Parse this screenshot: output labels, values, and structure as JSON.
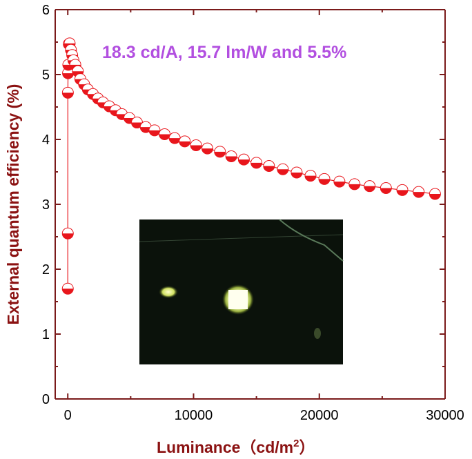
{
  "chart_data": {
    "type": "scatter",
    "title": "",
    "xlabel": "Luminance（cd/m",
    "xlabel_sup": "2",
    "xlabel_close": "）",
    "ylabel": "External quantum efficiency (%)",
    "annotation": "18.3 cd/A, 15.7 lm/W and 5.5%",
    "xlim": [
      -1000,
      30000
    ],
    "ylim": [
      0,
      6
    ],
    "xticks": [
      0,
      10000,
      20000,
      30000
    ],
    "xtick_labels": [
      "0",
      "10000",
      "20000",
      "30000"
    ],
    "yticks": [
      0,
      1,
      2,
      3,
      4,
      5,
      6
    ],
    "ytick_labels": [
      "0",
      "1",
      "2",
      "3",
      "4",
      "5",
      "6"
    ],
    "grid": false,
    "marker_color": "#e8161c",
    "line_color": "#e8161c",
    "series": [
      {
        "x": [
          1,
          3,
          8,
          20,
          40,
          80,
          150,
          250,
          350,
          450,
          600,
          800,
          1000,
          1300,
          1600,
          2000,
          2400,
          2800,
          3300,
          3800,
          4300,
          4900,
          5500,
          6200,
          6900,
          7700,
          8500,
          9300,
          10200,
          11100,
          12100,
          13000,
          14000,
          15000,
          16000,
          17100,
          18200,
          19300,
          20400,
          21600,
          22800,
          24000,
          25300,
          26600,
          27900,
          29200
        ],
        "y": [
          1.7,
          2.55,
          4.72,
          5.02,
          5.15,
          5.47,
          5.48,
          5.38,
          5.3,
          5.22,
          5.15,
          5.05,
          4.93,
          4.85,
          4.77,
          4.7,
          4.63,
          4.57,
          4.51,
          4.45,
          4.39,
          4.33,
          4.26,
          4.19,
          4.14,
          4.08,
          4.02,
          3.97,
          3.91,
          3.86,
          3.81,
          3.74,
          3.69,
          3.64,
          3.59,
          3.54,
          3.49,
          3.44,
          3.39,
          3.35,
          3.31,
          3.28,
          3.25,
          3.22,
          3.19,
          3.16
        ]
      }
    ]
  },
  "inset": {
    "bg_color": "#0b120b",
    "glow_color": "#f4ffb0"
  }
}
